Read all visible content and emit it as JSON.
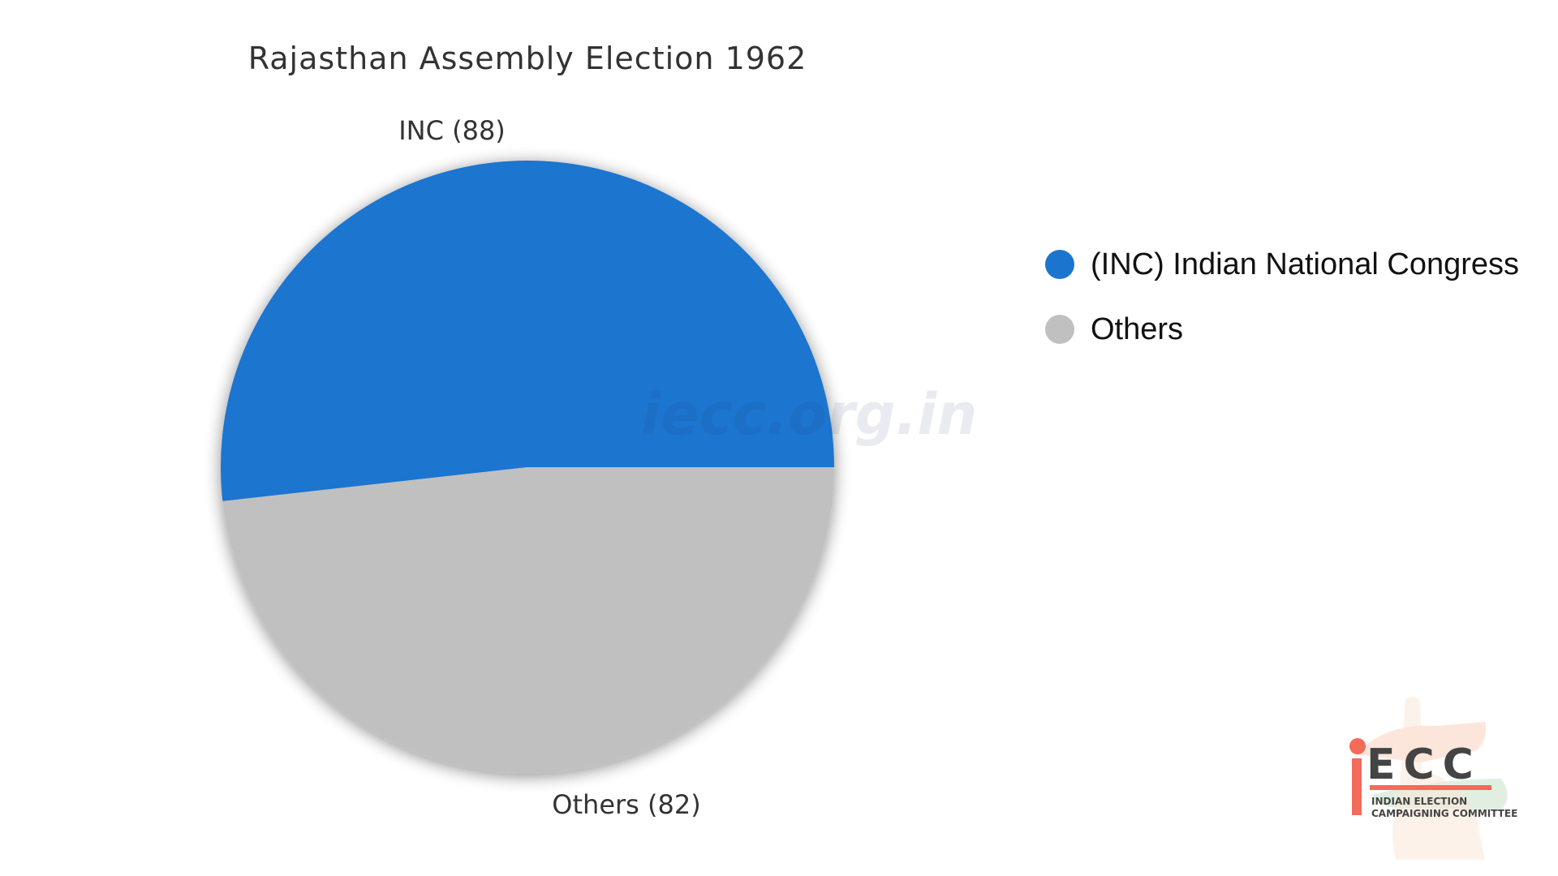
{
  "chart_data": {
    "type": "pie",
    "title": "Rajasthan Assembly Election 1962",
    "slices": [
      {
        "label": "INC (88)",
        "name": "INC",
        "value": 88,
        "color": "#1b75cf"
      },
      {
        "label": "Others (82)",
        "name": "Others",
        "value": 82,
        "color": "#c0c0c0"
      }
    ],
    "legend": {
      "position": "right",
      "entries": [
        {
          "label": "(INC) Indian National Congress",
          "color": "#1b75cf"
        },
        {
          "label": "Others",
          "color": "#c0c0c0"
        }
      ]
    }
  },
  "watermark": "iecc.org.in",
  "logo": {
    "letters": "ECC",
    "line1": "INDIAN ELECTION",
    "line2": "CAMPAIGNING COMMITTEE",
    "colors": {
      "accent": "#f26b5b",
      "text": "#444444"
    }
  }
}
